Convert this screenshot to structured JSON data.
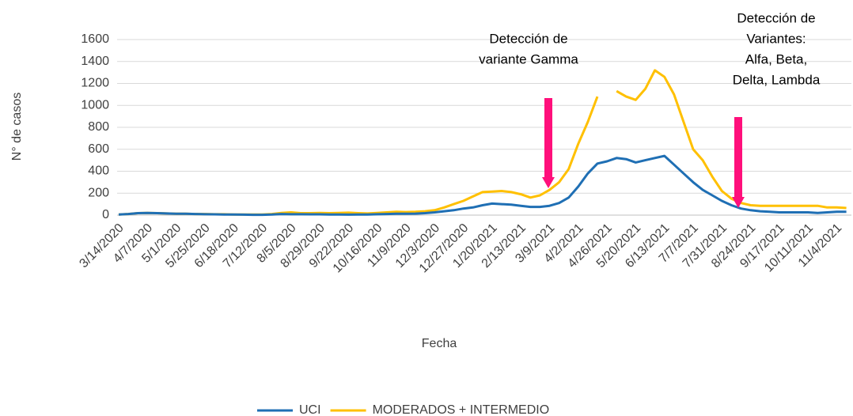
{
  "chart_data": {
    "type": "line",
    "y_label": "N° de casos",
    "x_label": "Fecha",
    "categories": [
      "3/14/2020",
      null,
      null,
      "4/7/2020",
      null,
      null,
      "5/1/2020",
      null,
      null,
      "5/25/2020",
      null,
      null,
      "6/18/2020",
      null,
      null,
      "7/12/2020",
      null,
      null,
      "8/5/2020",
      null,
      null,
      "8/29/2020",
      null,
      null,
      "9/22/2020",
      null,
      null,
      "10/16/2020",
      null,
      null,
      "11/9/2020",
      null,
      null,
      "12/3/2020",
      null,
      null,
      "12/27/2020",
      null,
      null,
      "1/20/2021",
      null,
      null,
      "2/13/2021",
      null,
      null,
      "3/9/2021",
      null,
      null,
      "4/2/2021",
      null,
      null,
      "4/26/2021",
      null,
      null,
      "5/20/2021",
      null,
      null,
      "6/13/2021",
      null,
      null,
      "7/7/2021",
      null,
      null,
      "7/31/2021",
      null,
      null,
      "8/24/2021",
      null,
      null,
      "9/17/2021",
      null,
      null,
      "10/11/2021",
      null,
      null,
      "11/4/2021",
      null
    ],
    "series": [
      {
        "name": "UCI",
        "color": "#1f6fb4",
        "values": [
          5,
          10,
          18,
          20,
          18,
          15,
          13,
          12,
          10,
          8,
          7,
          6,
          5,
          4,
          3,
          3,
          5,
          10,
          8,
          8,
          7,
          7,
          6,
          5,
          4,
          5,
          6,
          8,
          10,
          12,
          12,
          14,
          18,
          25,
          35,
          45,
          60,
          70,
          90,
          105,
          100,
          95,
          85,
          75,
          75,
          85,
          110,
          160,
          260,
          380,
          470,
          490,
          520,
          510,
          480,
          500,
          520,
          540,
          460,
          380,
          300,
          230,
          180,
          130,
          90,
          60,
          45,
          35,
          30,
          25,
          25,
          25,
          25,
          20,
          25,
          30,
          30
        ]
      },
      {
        "name": "MODERADOS + INTERMEDIO",
        "color": "#ffc000",
        "values": [
          5,
          10,
          18,
          20,
          18,
          15,
          12,
          12,
          10,
          10,
          8,
          8,
          6,
          5,
          5,
          5,
          10,
          20,
          25,
          18,
          18,
          20,
          18,
          20,
          22,
          18,
          15,
          20,
          25,
          30,
          28,
          30,
          35,
          45,
          70,
          100,
          130,
          170,
          210,
          215,
          220,
          210,
          190,
          160,
          180,
          230,
          300,
          420,
          650,
          850,
          1080,
          null,
          1130,
          1080,
          1050,
          1150,
          1320,
          1260,
          1100,
          850,
          600,
          500,
          350,
          220,
          150,
          110,
          90,
          85,
          85,
          85,
          85,
          85,
          85,
          85,
          70,
          70,
          65
        ]
      }
    ],
    "ylim": [
      0,
      1600
    ],
    "yticks": [
      0,
      200,
      400,
      600,
      800,
      1000,
      1200,
      1400,
      1600
    ],
    "grid": true,
    "annotations": [
      {
        "lines": [
          "Detección de",
          "variante Gamma"
        ]
      },
      {
        "lines": [
          "Detección de",
          "Variantes:",
          "Alfa, Beta,",
          "Delta, Lambda"
        ]
      }
    ]
  }
}
